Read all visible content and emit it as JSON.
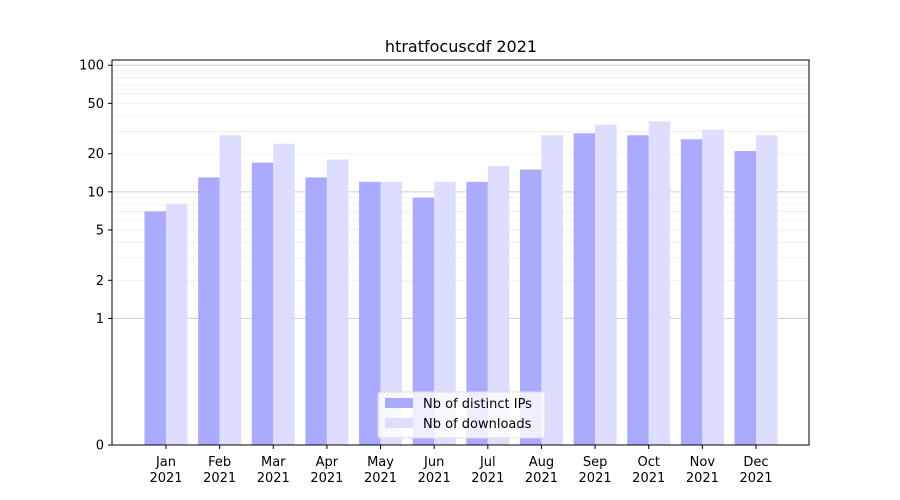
{
  "chart_data": {
    "type": "bar",
    "title": "htratfocuscdf 2021",
    "xlabel": "",
    "ylabel": "",
    "y_scale": "symlog",
    "ylim": [
      0,
      110
    ],
    "yticks": [
      0,
      1,
      2,
      5,
      10,
      20,
      50,
      100
    ],
    "ytick_labels": [
      "0",
      "1",
      "2",
      "5",
      "10",
      "20",
      "50",
      "100"
    ],
    "grid": true,
    "legend_position": "lower-center",
    "categories": [
      {
        "month": "Jan",
        "year": "2021"
      },
      {
        "month": "Feb",
        "year": "2021"
      },
      {
        "month": "Mar",
        "year": "2021"
      },
      {
        "month": "Apr",
        "year": "2021"
      },
      {
        "month": "May",
        "year": "2021"
      },
      {
        "month": "Jun",
        "year": "2021"
      },
      {
        "month": "Jul",
        "year": "2021"
      },
      {
        "month": "Aug",
        "year": "2021"
      },
      {
        "month": "Sep",
        "year": "2021"
      },
      {
        "month": "Oct",
        "year": "2021"
      },
      {
        "month": "Nov",
        "year": "2021"
      },
      {
        "month": "Dec",
        "year": "2021"
      }
    ],
    "series": [
      {
        "name": "Nb of distinct IPs",
        "color": "#aaaaff",
        "values": [
          7,
          13,
          17,
          13,
          12,
          9,
          12,
          15,
          29,
          28,
          26,
          21
        ]
      },
      {
        "name": "Nb of downloads",
        "color": "#ddddff",
        "values": [
          8,
          28,
          24,
          18,
          12,
          12,
          16,
          28,
          34,
          36,
          31,
          28
        ]
      }
    ]
  }
}
